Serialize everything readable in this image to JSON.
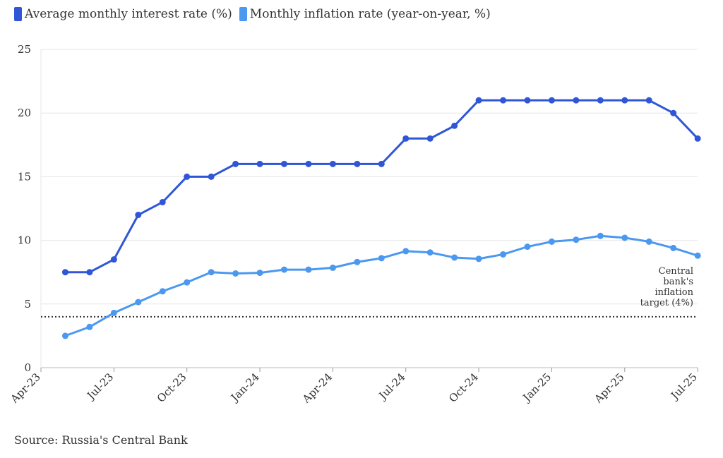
{
  "chart_data": {
    "type": "line",
    "legend_placement": "top-left",
    "grid": true,
    "ylim": [
      0,
      25
    ],
    "y_ticks": [
      0,
      5,
      10,
      15,
      20,
      25
    ],
    "x_ticks": [
      "Apr-23",
      "Jul-23",
      "Oct-23",
      "Jan-24",
      "Apr-24",
      "Jul-24",
      "Oct-24",
      "Jan-25",
      "Apr-25",
      "Jul-25"
    ],
    "x": [
      "May-23",
      "Jun-23",
      "Jul-23",
      "Aug-23",
      "Sep-23",
      "Oct-23",
      "Nov-23",
      "Dec-23",
      "Jan-24",
      "Feb-24",
      "Mar-24",
      "Apr-24",
      "May-24",
      "Jun-24",
      "Jul-24",
      "Aug-24",
      "Sep-24",
      "Oct-24",
      "Nov-24",
      "Dec-24",
      "Jan-25",
      "Feb-25",
      "Mar-25",
      "Apr-25",
      "May-25",
      "Jun-25",
      "Jul-25"
    ],
    "series": [
      {
        "name": "Average monthly interest rate (%)",
        "color": "#2f56d6",
        "values": [
          7.5,
          7.5,
          8.5,
          12,
          13,
          15,
          15,
          16,
          16,
          16,
          16,
          16,
          16,
          16,
          18,
          18,
          19,
          21,
          21,
          21,
          21,
          21,
          21,
          21,
          21,
          20,
          18
        ]
      },
      {
        "name": "Monthly inflation rate (year-on-year, %)",
        "color": "#4a98f0",
        "values": [
          2.5,
          3.2,
          4.3,
          5.15,
          6.0,
          6.7,
          7.5,
          7.4,
          7.45,
          7.7,
          7.7,
          7.85,
          8.3,
          8.6,
          9.15,
          9.05,
          8.65,
          8.55,
          8.9,
          9.5,
          9.9,
          10.05,
          10.35,
          10.2,
          9.9,
          9.4,
          8.8
        ]
      }
    ],
    "reference_line": {
      "value": 4,
      "label_lines": [
        "Central",
        "bank's",
        "inflation",
        "target (4%)"
      ]
    },
    "source": "Source: Russia's Central Bank"
  }
}
